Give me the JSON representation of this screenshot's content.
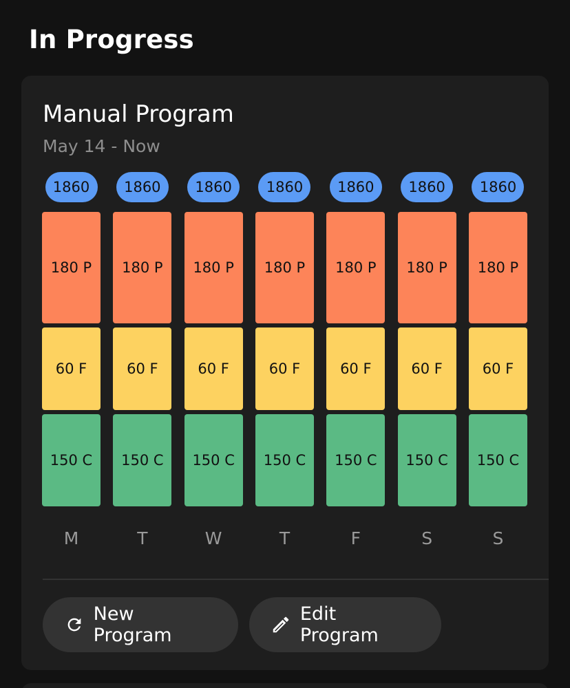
{
  "section": {
    "title": "In Progress"
  },
  "program": {
    "title": "Manual Program",
    "date_range": "May 14 - Now",
    "days": [
      {
        "label": "M",
        "total": "1860",
        "protein": "180 P",
        "fat": "60 F",
        "carbs": "150 C"
      },
      {
        "label": "T",
        "total": "1860",
        "protein": "180 P",
        "fat": "60 F",
        "carbs": "150 C"
      },
      {
        "label": "W",
        "total": "1860",
        "protein": "180 P",
        "fat": "60 F",
        "carbs": "150 C"
      },
      {
        "label": "T",
        "total": "1860",
        "protein": "180 P",
        "fat": "60 F",
        "carbs": "150 C"
      },
      {
        "label": "F",
        "total": "1860",
        "protein": "180 P",
        "fat": "60 F",
        "carbs": "150 C"
      },
      {
        "label": "S",
        "total": "1860",
        "protein": "180 P",
        "fat": "60 F",
        "carbs": "150 C"
      },
      {
        "label": "S",
        "total": "1860",
        "protein": "180 P",
        "fat": "60 F",
        "carbs": "150 C"
      }
    ]
  },
  "actions": {
    "new_program": {
      "label": "New Program",
      "icon": "refresh-icon"
    },
    "edit_program": {
      "label": "Edit Program",
      "icon": "pencil-icon"
    }
  },
  "colors": {
    "background": "#121212",
    "card": "#1e1e1e",
    "total_pill": "#5b9bf5",
    "protein": "#fd8459",
    "fat": "#fdd260",
    "carbs": "#5bba84",
    "button": "#333333"
  }
}
